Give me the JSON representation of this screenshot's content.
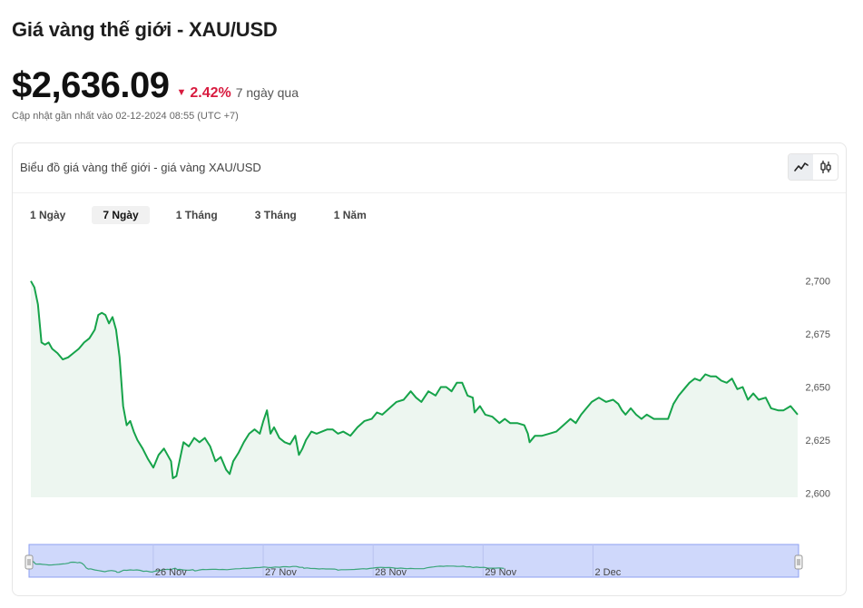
{
  "header": {
    "title": "Giá vàng thế giới - XAU/USD",
    "price": "$2,636.09",
    "change_pct": "2.42%",
    "change_period": "7 ngày qua",
    "updated": "Cập nhật gần nhất vào 02-12-2024 08:55 (UTC +7)"
  },
  "card": {
    "title": "Biểu đồ giá vàng thế giới - giá vàng XAU/USD",
    "views": [
      {
        "icon": "line-chart-icon",
        "active": true
      },
      {
        "icon": "candlestick-icon",
        "active": false
      }
    ]
  },
  "range_tabs": [
    {
      "label": "1 Ngày",
      "active": false
    },
    {
      "label": "7 Ngày",
      "active": true
    },
    {
      "label": "1 Tháng",
      "active": false
    },
    {
      "label": "3 Tháng",
      "active": false
    },
    {
      "label": "1 Năm",
      "active": false
    }
  ],
  "colors": {
    "line": "#16a34a",
    "area": "#edf6f0",
    "negative": "#d81b3f",
    "navigator_fill": "#cfd8fb",
    "navigator_line": "#3aa57a"
  },
  "chart_data": {
    "type": "area",
    "y_ticks": [
      "2,700",
      "2,675",
      "2,650",
      "2,625",
      "2,600"
    ],
    "ylim": [
      2598,
      2705
    ],
    "x_range": [
      0,
      7.0
    ],
    "navigator_labels": [
      {
        "label": "26 Nov",
        "x": 1.13
      },
      {
        "label": "27 Nov",
        "x": 2.13
      },
      {
        "label": "28 Nov",
        "x": 3.13
      },
      {
        "label": "29 Nov",
        "x": 4.13
      },
      {
        "label": "2 Dec",
        "x": 5.13
      }
    ],
    "series": [
      {
        "values": [
          [
            0.0,
            2700
          ],
          [
            0.02,
            2697
          ],
          [
            0.04,
            2689
          ],
          [
            0.06,
            2671
          ],
          [
            0.08,
            2670
          ],
          [
            0.1,
            2671
          ],
          [
            0.12,
            2668
          ],
          [
            0.15,
            2666
          ],
          [
            0.18,
            2663
          ],
          [
            0.21,
            2664
          ],
          [
            0.24,
            2666
          ],
          [
            0.27,
            2668
          ],
          [
            0.3,
            2671
          ],
          [
            0.33,
            2673
          ],
          [
            0.36,
            2677
          ],
          [
            0.38,
            2684
          ],
          [
            0.4,
            2685
          ],
          [
            0.42,
            2684
          ],
          [
            0.44,
            2680
          ],
          [
            0.46,
            2683
          ],
          [
            0.48,
            2677
          ],
          [
            0.5,
            2664
          ],
          [
            0.52,
            2641
          ],
          [
            0.54,
            2632
          ],
          [
            0.56,
            2634
          ],
          [
            0.58,
            2629
          ],
          [
            0.6,
            2625
          ],
          [
            0.63,
            2621
          ],
          [
            0.66,
            2616
          ],
          [
            0.69,
            2612
          ],
          [
            0.72,
            2618
          ],
          [
            0.75,
            2621
          ],
          [
            0.77,
            2618
          ],
          [
            0.79,
            2615
          ],
          [
            0.8,
            2607
          ],
          [
            0.82,
            2608
          ],
          [
            0.84,
            2616
          ],
          [
            0.86,
            2624
          ],
          [
            0.89,
            2622
          ],
          [
            0.92,
            2626
          ],
          [
            0.95,
            2624
          ],
          [
            0.98,
            2626
          ],
          [
            1.01,
            2622
          ],
          [
            1.04,
            2615
          ],
          [
            1.07,
            2617
          ],
          [
            1.1,
            2611
          ],
          [
            1.12,
            2609
          ],
          [
            1.14,
            2615
          ],
          [
            1.17,
            2619
          ],
          [
            1.2,
            2624
          ],
          [
            1.23,
            2628
          ],
          [
            1.26,
            2630
          ],
          [
            1.29,
            2628
          ],
          [
            1.31,
            2634
          ],
          [
            1.33,
            2639
          ],
          [
            1.35,
            2628
          ],
          [
            1.37,
            2631
          ],
          [
            1.4,
            2626
          ],
          [
            1.43,
            2624
          ],
          [
            1.46,
            2623
          ],
          [
            1.49,
            2627
          ],
          [
            1.51,
            2618
          ],
          [
            1.53,
            2621
          ],
          [
            1.55,
            2625
          ],
          [
            1.58,
            2629
          ],
          [
            1.61,
            2628
          ],
          [
            1.64,
            2629
          ],
          [
            1.67,
            2630
          ],
          [
            1.7,
            2630
          ],
          [
            1.73,
            2628
          ],
          [
            1.76,
            2629
          ],
          [
            1.8,
            2627
          ],
          [
            1.84,
            2631
          ],
          [
            1.88,
            2634
          ],
          [
            1.92,
            2635
          ],
          [
            1.95,
            2638
          ],
          [
            1.98,
            2637
          ],
          [
            2.02,
            2640
          ],
          [
            2.06,
            2643
          ],
          [
            2.1,
            2644
          ],
          [
            2.14,
            2648
          ],
          [
            2.17,
            2645
          ],
          [
            2.2,
            2643
          ],
          [
            2.24,
            2648
          ],
          [
            2.28,
            2646
          ],
          [
            2.31,
            2650
          ],
          [
            2.34,
            2650
          ],
          [
            2.37,
            2648
          ],
          [
            2.4,
            2652
          ],
          [
            2.43,
            2652
          ],
          [
            2.46,
            2646
          ],
          [
            2.49,
            2645
          ],
          [
            2.5,
            2638
          ],
          [
            2.53,
            2641
          ],
          [
            2.56,
            2637
          ],
          [
            2.6,
            2636
          ],
          [
            2.64,
            2633
          ],
          [
            2.67,
            2635
          ],
          [
            2.7,
            2633
          ],
          [
            2.74,
            2633
          ],
          [
            2.78,
            2632
          ],
          [
            2.8,
            2628
          ],
          [
            2.81,
            2624
          ],
          [
            2.84,
            2627
          ],
          [
            2.88,
            2627
          ],
          [
            2.92,
            2628
          ],
          [
            2.96,
            2629
          ],
          [
            3.0,
            2632
          ],
          [
            3.04,
            2635
          ],
          [
            3.07,
            2633
          ],
          [
            3.1,
            2637
          ],
          [
            3.13,
            2640
          ],
          [
            3.16,
            2643
          ],
          [
            3.2,
            2645
          ],
          [
            3.24,
            2643
          ],
          [
            3.28,
            2644
          ],
          [
            3.31,
            2642
          ],
          [
            3.33,
            2639
          ],
          [
            3.35,
            2637
          ],
          [
            3.38,
            2640
          ],
          [
            3.41,
            2637
          ],
          [
            3.44,
            2635
          ],
          [
            3.47,
            2637
          ],
          [
            3.51,
            2635
          ],
          [
            3.55,
            2635
          ],
          [
            3.59,
            2635
          ],
          [
            3.62,
            2642
          ],
          [
            3.65,
            2646
          ],
          [
            3.68,
            2649
          ],
          [
            3.71,
            2652
          ],
          [
            3.74,
            2654
          ],
          [
            3.77,
            2653
          ],
          [
            3.8,
            2656
          ],
          [
            3.83,
            2655
          ],
          [
            3.86,
            2655
          ],
          [
            3.89,
            2653
          ],
          [
            3.92,
            2652
          ],
          [
            3.95,
            2654
          ],
          [
            3.98,
            2649
          ],
          [
            4.01,
            2650
          ],
          [
            4.04,
            2644
          ],
          [
            4.07,
            2647
          ],
          [
            4.1,
            2644
          ],
          [
            4.14,
            2645
          ],
          [
            4.17,
            2640
          ],
          [
            4.21,
            2639
          ],
          [
            4.24,
            2639
          ],
          [
            4.28,
            2641
          ],
          [
            4.32,
            2637
          ]
        ]
      }
    ]
  }
}
